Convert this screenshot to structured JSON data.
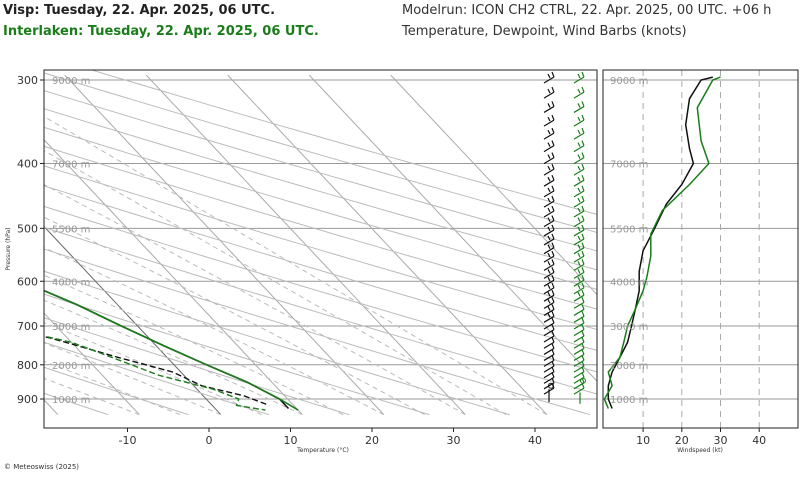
{
  "header": {
    "title_primary": "Visp: Tuesday, 22. Apr. 2025, 06 UTC.",
    "title_secondary": "Interlaken: Tuesday, 22. Apr. 2025, 06 UTC.",
    "model_run": "Modelrun: ICON CH2 CTRL, 22. Apr. 2025, 00 UTC. +06 h",
    "variables": "Temperature, Dewpoint, Wind Barbs (knots)"
  },
  "footer": {
    "copyright": "© Meteoswiss (2025)"
  },
  "colors": {
    "visp": "#111111",
    "interlaken": "#1a7d1a",
    "grid": "#bbbbbb"
  },
  "chart_data": [
    {
      "type": "line",
      "subtype": "skew-T log-P",
      "xlabel": "Temperature (°C)",
      "ylabel": "Pressure (hPa)",
      "x_ticks": [
        -10,
        0,
        10,
        20,
        30,
        40
      ],
      "y_ticks": [
        300,
        400,
        500,
        600,
        700,
        800,
        900
      ],
      "xlim": [
        -20,
        47
      ],
      "ylim": [
        950,
        295
      ],
      "y_scale": "log",
      "height_labels": [
        {
          "p": 300,
          "label": "9000 m"
        },
        {
          "p": 400,
          "label": "7000 m"
        },
        {
          "p": 500,
          "label": "5500 m"
        },
        {
          "p": 600,
          "label": "4000 m"
        },
        {
          "p": 700,
          "label": "3000 m"
        },
        {
          "p": 800,
          "label": "2000 m"
        },
        {
          "p": 900,
          "label": "1000 m"
        }
      ],
      "series": [
        {
          "name": "Visp",
          "kind": "temperature",
          "points": [
            [
              -46,
              300
            ],
            [
              -40,
              340
            ],
            [
              -33,
              400
            ],
            [
              -26,
              450
            ],
            [
              -20,
              500
            ],
            [
              -14,
              550
            ],
            [
              -9,
              600
            ],
            [
              -5,
              650
            ],
            [
              -2,
              700
            ],
            [
              1,
              750
            ],
            [
              4,
              800
            ],
            [
              7,
              850
            ],
            [
              9,
              900
            ],
            [
              9,
              930
            ]
          ]
        },
        {
          "name": "Visp",
          "kind": "dewpoint",
          "points": [
            [
              -59,
              300
            ],
            [
              -55,
              330
            ],
            [
              -50,
              350
            ],
            [
              -53,
              380
            ],
            [
              -50,
              410
            ],
            [
              -46,
              440
            ],
            [
              -45,
              480
            ],
            [
              -40,
              500
            ],
            [
              -35,
              530
            ],
            [
              -36,
              570
            ],
            [
              -43,
              600
            ],
            [
              -34,
              650
            ],
            [
              -20,
              690
            ],
            [
              -12,
              730
            ],
            [
              -6,
              780
            ],
            [
              -1,
              820
            ],
            [
              1,
              860
            ],
            [
              5,
              890
            ],
            [
              7,
              920
            ]
          ]
        },
        {
          "name": "Interlaken",
          "kind": "temperature",
          "points": [
            [
              -46,
              300
            ],
            [
              -40,
              340
            ],
            [
              -33,
              400
            ],
            [
              -26,
              450
            ],
            [
              -20,
              500
            ],
            [
              -14,
              550
            ],
            [
              -9,
              600
            ],
            [
              -5,
              650
            ],
            [
              -2,
              700
            ],
            [
              1,
              750
            ],
            [
              4,
              800
            ],
            [
              7,
              850
            ],
            [
              9,
              900
            ],
            [
              10,
              935
            ]
          ]
        },
        {
          "name": "Interlaken",
          "kind": "dewpoint",
          "points": [
            [
              -57,
              300
            ],
            [
              -52,
              330
            ],
            [
              -47,
              350
            ],
            [
              -50,
              380
            ],
            [
              -47,
              410
            ],
            [
              -45,
              440
            ],
            [
              -43,
              470
            ],
            [
              -42,
              490
            ],
            [
              -37,
              510
            ],
            [
              -46,
              570
            ],
            [
              -55,
              600
            ],
            [
              -40,
              620
            ],
            [
              -22,
              660
            ],
            [
              -17,
              700
            ],
            [
              -10,
              740
            ],
            [
              -6,
              790
            ],
            [
              -3,
              830
            ],
            [
              2,
              870
            ],
            [
              4,
              900
            ],
            [
              3,
              920
            ],
            [
              6,
              935
            ]
          ]
        }
      ]
    },
    {
      "type": "line",
      "xlabel": "Windspeed (kt)",
      "x_ticks": [
        10,
        20,
        30,
        40
      ],
      "xlim": [
        0,
        48
      ],
      "ylim": [
        950,
        295
      ],
      "y_scale": "log",
      "height_labels": [
        "9000 m",
        "7000 m",
        "5500 m",
        "4000 m",
        "3000 m",
        "2000 m",
        "1000 m"
      ],
      "series": [
        {
          "name": "Visp",
          "points": [
            [
              28,
              297
            ],
            [
              25,
              300
            ],
            [
              22,
              320
            ],
            [
              21,
              350
            ],
            [
              22,
              380
            ],
            [
              23,
              400
            ],
            [
              20,
              430
            ],
            [
              16,
              460
            ],
            [
              13,
              500
            ],
            [
              10,
              540
            ],
            [
              9,
              580
            ],
            [
              9,
              620
            ],
            [
              8,
              660
            ],
            [
              7,
              700
            ],
            [
              6,
              740
            ],
            [
              4,
              780
            ],
            [
              2,
              820
            ],
            [
              1,
              860
            ],
            [
              1,
              900
            ],
            [
              2,
              930
            ]
          ]
        },
        {
          "name": "Interlaken",
          "points": [
            [
              30,
              297
            ],
            [
              28,
              300
            ],
            [
              24,
              330
            ],
            [
              25,
              370
            ],
            [
              27,
              400
            ],
            [
              22,
              430
            ],
            [
              15,
              470
            ],
            [
              12,
              510
            ],
            [
              12,
              550
            ],
            [
              11,
              590
            ],
            [
              10,
              620
            ],
            [
              8,
              660
            ],
            [
              6,
              700
            ],
            [
              5,
              740
            ],
            [
              4,
              780
            ],
            [
              1,
              820
            ],
            [
              2,
              860
            ],
            [
              0,
              900
            ],
            [
              1,
              930
            ]
          ]
        }
      ]
    }
  ]
}
